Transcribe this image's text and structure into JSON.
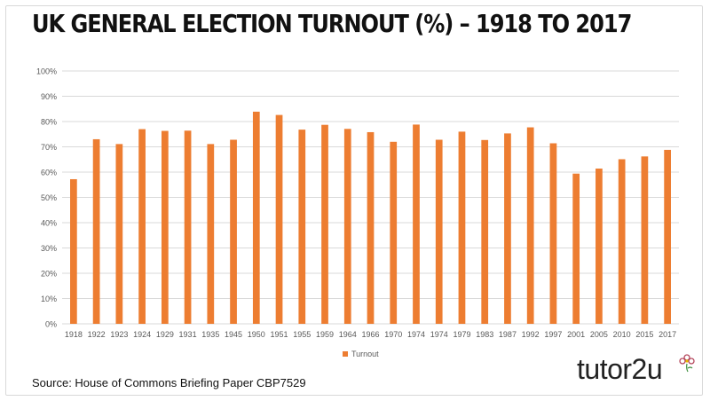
{
  "title": "UK GENERAL ELECTION TURNOUT (%) – 1918 TO 2017",
  "source": "Source: House of Commons Briefing Paper CBP7529",
  "logo_text": "tutor2u",
  "colors": {
    "bar": "#ED7D31",
    "grid": "#d9d9d9",
    "axis_text": "#595959"
  },
  "chart_data": {
    "type": "bar",
    "categories": [
      "1918",
      "1922",
      "1923",
      "1924",
      "1929",
      "1931",
      "1935",
      "1945",
      "1950",
      "1951",
      "1955",
      "1959",
      "1964",
      "1966",
      "1970",
      "1974",
      "1974",
      "1979",
      "1983",
      "1987",
      "1992",
      "1997",
      "2001",
      "2005",
      "2010",
      "2015",
      "2017"
    ],
    "series": [
      {
        "name": "Turnout",
        "values": [
          57.2,
          73.0,
          71.1,
          77.0,
          76.3,
          76.4,
          71.1,
          72.8,
          83.9,
          82.6,
          76.8,
          78.7,
          77.1,
          75.8,
          72.0,
          78.8,
          72.8,
          76.0,
          72.7,
          75.3,
          77.7,
          71.4,
          59.4,
          61.4,
          65.1,
          66.2,
          68.8
        ]
      }
    ],
    "yticks": [
      "0%",
      "10%",
      "20%",
      "30%",
      "40%",
      "50%",
      "60%",
      "70%",
      "80%",
      "90%",
      "100%"
    ],
    "ylim": [
      0,
      100
    ],
    "grid": true,
    "legend": "bottom"
  }
}
